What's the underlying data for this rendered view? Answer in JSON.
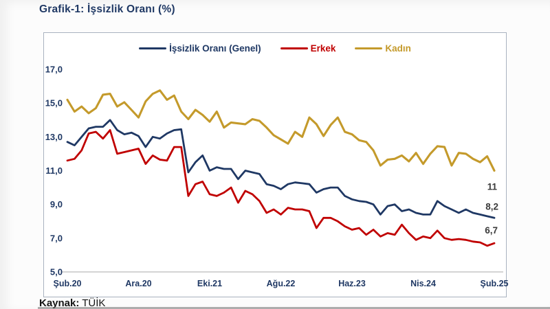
{
  "page": {
    "title": "Grafik-1: İşsizlik Oranı (%)",
    "source_label": "Kaynak:",
    "source_value": "TÜİK"
  },
  "chart_data": {
    "type": "line",
    "title": "Grafik-1: İşsizlik Oranı (%)",
    "x_unit": "month",
    "n_points": 61,
    "x_start": "Şub.20",
    "x_end": "Şub.25",
    "x_tick_labels": [
      "Şub.20",
      "Ara.20",
      "Eki.21",
      "Ağu.22",
      "Haz.23",
      "Nis.24",
      "Şub.25"
    ],
    "x_tick_positions": [
      0,
      10,
      20,
      30,
      40,
      50,
      60
    ],
    "y_tick_labels": [
      "17,0",
      "15,0",
      "13,0",
      "11,0",
      "9,0",
      "7,0",
      "5,0"
    ],
    "ylim": [
      5,
      17
    ],
    "grid": "bottom-baseline-only",
    "legend_position": "top-center",
    "series": [
      {
        "name": "İşsizlik Oranı (Genel)",
        "slug": "genel",
        "color": "#1F3864",
        "end_label": "8,2",
        "values": [
          12.7,
          12.5,
          13.0,
          13.5,
          13.6,
          13.6,
          14.0,
          13.4,
          13.15,
          13.25,
          13.05,
          12.4,
          13.0,
          12.9,
          13.2,
          13.4,
          13.45,
          10.9,
          11.5,
          11.9,
          11.0,
          11.2,
          11.1,
          11.1,
          10.5,
          11.0,
          10.9,
          10.8,
          10.2,
          10.1,
          9.9,
          10.2,
          10.3,
          10.25,
          10.2,
          9.7,
          9.9,
          10.0,
          10.0,
          9.5,
          9.3,
          9.2,
          9.15,
          9.0,
          8.4,
          8.9,
          9.0,
          8.6,
          8.7,
          8.5,
          8.4,
          8.4,
          9.2,
          8.9,
          8.7,
          8.5,
          8.7,
          8.5,
          8.4,
          8.3,
          8.2
        ]
      },
      {
        "name": "Erkek",
        "slug": "erkek",
        "color": "#C00000",
        "end_label": "6,7",
        "values": [
          11.6,
          11.7,
          12.2,
          13.2,
          13.3,
          12.9,
          13.4,
          12.0,
          12.1,
          12.2,
          12.3,
          11.4,
          11.9,
          11.65,
          11.6,
          12.4,
          12.4,
          9.5,
          10.2,
          10.35,
          9.6,
          9.5,
          9.7,
          10.0,
          9.1,
          9.8,
          9.6,
          9.2,
          8.5,
          8.7,
          8.4,
          8.8,
          8.7,
          8.7,
          8.6,
          7.6,
          8.2,
          8.2,
          8.0,
          7.7,
          7.5,
          7.6,
          7.2,
          7.5,
          7.1,
          7.3,
          7.2,
          7.8,
          7.3,
          6.9,
          7.1,
          7.0,
          7.45,
          7.0,
          6.9,
          6.95,
          6.9,
          6.8,
          6.75,
          6.55,
          6.7
        ]
      },
      {
        "name": "Kadın",
        "slug": "kadin",
        "color": "#C49A2B",
        "end_label": "11",
        "values": [
          15.2,
          14.5,
          14.8,
          14.4,
          14.7,
          15.5,
          15.55,
          14.8,
          15.05,
          14.6,
          14.15,
          15.1,
          15.55,
          15.75,
          15.2,
          15.45,
          14.5,
          14.05,
          14.6,
          14.3,
          13.9,
          14.5,
          13.55,
          13.85,
          13.8,
          13.75,
          14.05,
          13.95,
          13.55,
          13.1,
          12.85,
          12.6,
          13.3,
          13.0,
          14.15,
          13.75,
          13.05,
          13.7,
          14.15,
          13.3,
          13.15,
          12.8,
          12.7,
          12.2,
          11.3,
          11.65,
          11.7,
          11.9,
          11.55,
          12.05,
          11.4,
          12.0,
          12.45,
          12.4,
          11.3,
          12.05,
          12.0,
          11.7,
          11.5,
          11.85,
          11.0
        ]
      }
    ]
  }
}
